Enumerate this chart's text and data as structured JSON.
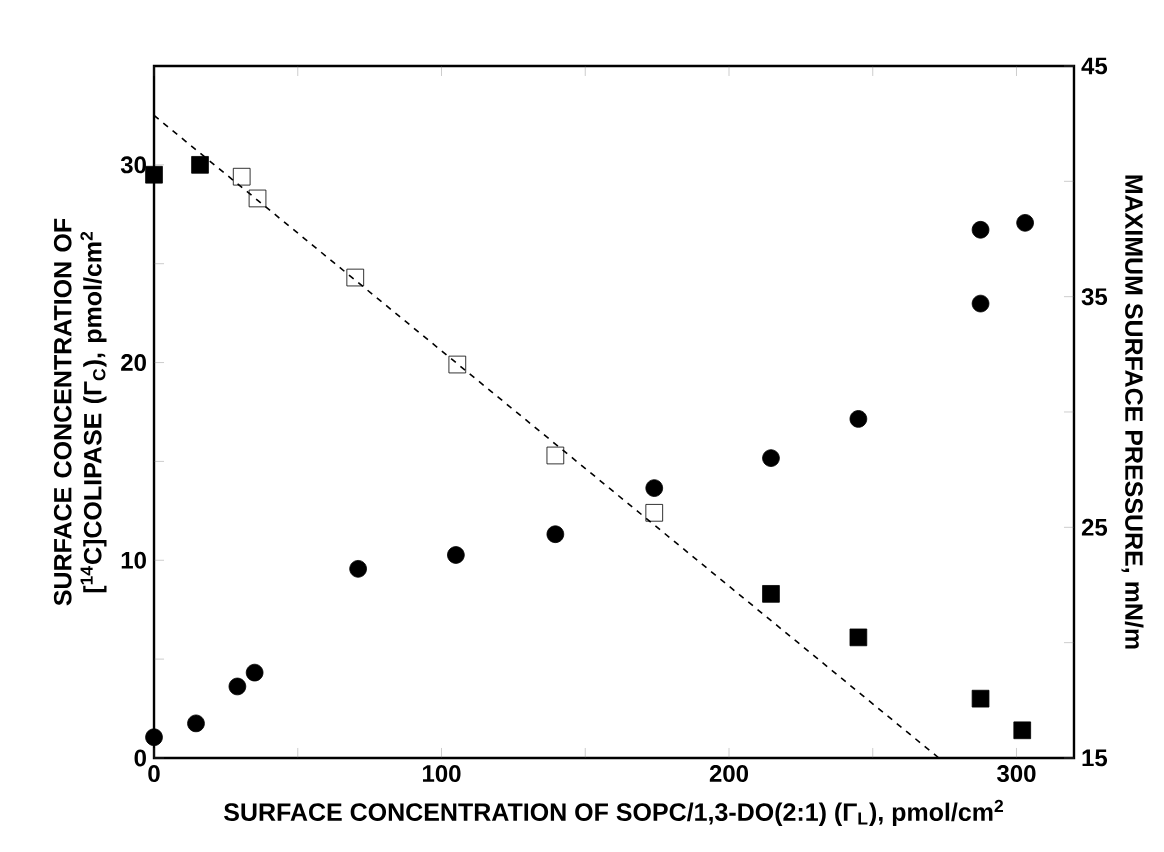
{
  "chart_data": {
    "type": "scatter",
    "xlabel": "SURFACE CONCENTRATION OF SOPC/1,3-DO(2:1) (Γ$_{L}$), pmol/cm$^{2}$",
    "ylabel": "SURFACE CONCENTRATION OF [$^{14}$C]COLIPASE (Γ$_{C}$), pmol/cm$^{2}$",
    "y2label": "MAXIMUM SURFACE PRESSURE, mN/m",
    "xlim": [
      0,
      320
    ],
    "ylim": [
      0,
      35
    ],
    "y2lim": [
      15,
      45
    ],
    "xticks": [
      0,
      {
        "value": 50,
        "label": null
      },
      100,
      {
        "value": 150,
        "label": null
      },
      200,
      {
        "value": 250,
        "label": null
      },
      300
    ],
    "yticks": [
      0,
      {
        "value": 5,
        "label": null
      },
      10,
      {
        "value": 15,
        "label": null
      },
      20,
      {
        "value": 25,
        "label": null
      },
      30
    ],
    "y2ticks": [
      15,
      {
        "value": 20,
        "label": null
      },
      25,
      {
        "value": 30,
        "label": null
      },
      35,
      {
        "value": 40,
        "label": null
      },
      45
    ],
    "series": [
      {
        "type": "line",
        "line_style": "dashed",
        "color": "#000000",
        "x": [
          0,
          273
        ],
        "values": [
          32.5,
          0
        ]
      },
      {
        "marker": "square",
        "color": "#000000",
        "x": [
          0,
          16,
          214.6,
          245,
          287.5,
          302
        ],
        "values": [
          29.5,
          30.0,
          8.3,
          6.1,
          3.0,
          1.4
        ]
      },
      {
        "marker": "square-open",
        "color": "#000000",
        "x": [
          30.5,
          36,
          70,
          105.5,
          139.6,
          174
        ],
        "values": [
          29.4,
          28.3,
          24.3,
          19.9,
          15.3,
          12.4
        ]
      },
      {
        "marker": "circle",
        "axis": "y2",
        "color": "#000000",
        "x": [
          0,
          14.6,
          29,
          35,
          71,
          105,
          139.6,
          174,
          214.6,
          245,
          287.5,
          287.5,
          303
        ],
        "values": [
          15.9,
          16.5,
          18.1,
          18.7,
          23.2,
          23.8,
          24.7,
          26.7,
          28.0,
          29.7,
          34.7,
          37.9,
          38.2
        ]
      }
    ]
  }
}
